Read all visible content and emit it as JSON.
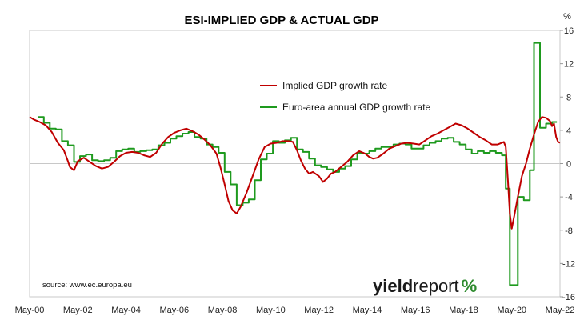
{
  "chart_data": {
    "type": "line",
    "title": "ESI-IMPLIED GDP & ACTUAL GDP",
    "y_unit_label": "%",
    "ylim": [
      -16,
      16
    ],
    "yticks": [
      -16,
      -12,
      -8,
      -4,
      0,
      4,
      8,
      12,
      16
    ],
    "y_axis_position": "right",
    "xlim": [
      2000.33,
      2022.33
    ],
    "x_tick_labels": [
      "May-00",
      "May-02",
      "May-04",
      "May-06",
      "May-08",
      "May-10",
      "May-12",
      "May-14",
      "May-16",
      "May-18",
      "May-20",
      "May-22"
    ],
    "x_tick_values": [
      2000.33,
      2002.33,
      2004.33,
      2006.33,
      2008.33,
      2010.33,
      2012.33,
      2014.33,
      2016.33,
      2018.33,
      2020.33,
      2022.33
    ],
    "grid": false,
    "legend_position": "top-center",
    "series": [
      {
        "name": "Implied GDP growth rate",
        "color": "#c00000",
        "points": [
          [
            2000.33,
            5.6
          ],
          [
            2000.5,
            5.3
          ],
          [
            2000.75,
            5.0
          ],
          [
            2001.0,
            4.6
          ],
          [
            2001.25,
            3.8
          ],
          [
            2001.5,
            2.5
          ],
          [
            2001.75,
            1.6
          ],
          [
            2001.92,
            0.3
          ],
          [
            2002.0,
            -0.4
          ],
          [
            2002.17,
            -0.8
          ],
          [
            2002.33,
            0.3
          ],
          [
            2002.58,
            0.7
          ],
          [
            2002.83,
            0.2
          ],
          [
            2003.08,
            -0.3
          ],
          [
            2003.33,
            -0.6
          ],
          [
            2003.58,
            -0.4
          ],
          [
            2003.83,
            0.2
          ],
          [
            2004.08,
            0.9
          ],
          [
            2004.33,
            1.3
          ],
          [
            2004.58,
            1.4
          ],
          [
            2004.83,
            1.3
          ],
          [
            2005.08,
            1.0
          ],
          [
            2005.33,
            0.8
          ],
          [
            2005.58,
            1.3
          ],
          [
            2005.83,
            2.4
          ],
          [
            2006.08,
            3.2
          ],
          [
            2006.33,
            3.7
          ],
          [
            2006.58,
            4.0
          ],
          [
            2006.83,
            4.2
          ],
          [
            2007.08,
            3.9
          ],
          [
            2007.33,
            3.5
          ],
          [
            2007.58,
            2.9
          ],
          [
            2007.83,
            2.2
          ],
          [
            2008.08,
            1.2
          ],
          [
            2008.25,
            -0.5
          ],
          [
            2008.42,
            -2.5
          ],
          [
            2008.58,
            -4.5
          ],
          [
            2008.75,
            -5.6
          ],
          [
            2008.92,
            -6.0
          ],
          [
            2009.08,
            -5.2
          ],
          [
            2009.33,
            -3.5
          ],
          [
            2009.58,
            -1.5
          ],
          [
            2009.83,
            0.5
          ],
          [
            2010.08,
            2.0
          ],
          [
            2010.33,
            2.4
          ],
          [
            2010.58,
            2.5
          ],
          [
            2010.83,
            2.7
          ],
          [
            2011.08,
            2.7
          ],
          [
            2011.25,
            2.6
          ],
          [
            2011.42,
            1.6
          ],
          [
            2011.58,
            0.4
          ],
          [
            2011.75,
            -0.6
          ],
          [
            2011.92,
            -1.2
          ],
          [
            2012.08,
            -1.0
          ],
          [
            2012.33,
            -1.5
          ],
          [
            2012.5,
            -2.2
          ],
          [
            2012.67,
            -1.8
          ],
          [
            2012.83,
            -1.2
          ],
          [
            2013.0,
            -1.0
          ],
          [
            2013.25,
            -0.4
          ],
          [
            2013.5,
            0.2
          ],
          [
            2013.75,
            1.0
          ],
          [
            2014.0,
            1.5
          ],
          [
            2014.25,
            1.2
          ],
          [
            2014.42,
            0.8
          ],
          [
            2014.58,
            0.6
          ],
          [
            2014.75,
            0.7
          ],
          [
            2015.0,
            1.2
          ],
          [
            2015.25,
            1.8
          ],
          [
            2015.5,
            2.1
          ],
          [
            2015.75,
            2.4
          ],
          [
            2016.0,
            2.5
          ],
          [
            2016.25,
            2.4
          ],
          [
            2016.5,
            2.3
          ],
          [
            2016.75,
            2.8
          ],
          [
            2017.0,
            3.3
          ],
          [
            2017.25,
            3.6
          ],
          [
            2017.5,
            4.0
          ],
          [
            2017.75,
            4.4
          ],
          [
            2018.0,
            4.8
          ],
          [
            2018.25,
            4.6
          ],
          [
            2018.5,
            4.2
          ],
          [
            2018.75,
            3.7
          ],
          [
            2019.0,
            3.2
          ],
          [
            2019.25,
            2.8
          ],
          [
            2019.5,
            2.3
          ],
          [
            2019.75,
            2.3
          ],
          [
            2020.0,
            2.6
          ],
          [
            2020.08,
            2.0
          ],
          [
            2020.17,
            -2.0
          ],
          [
            2020.25,
            -6.0
          ],
          [
            2020.33,
            -7.8
          ],
          [
            2020.42,
            -6.5
          ],
          [
            2020.58,
            -4.0
          ],
          [
            2020.75,
            -1.5
          ],
          [
            2020.92,
            0.0
          ],
          [
            2021.08,
            1.8
          ],
          [
            2021.25,
            3.5
          ],
          [
            2021.42,
            5.0
          ],
          [
            2021.58,
            5.6
          ],
          [
            2021.75,
            5.5
          ],
          [
            2021.92,
            5.1
          ],
          [
            2022.0,
            4.5
          ],
          [
            2022.08,
            4.8
          ],
          [
            2022.17,
            3.2
          ],
          [
            2022.25,
            2.6
          ],
          [
            2022.33,
            2.5
          ]
        ]
      },
      {
        "name": "Euro-area annual GDP growth rate",
        "color": "#1e9a1e",
        "points": [
          [
            2000.67,
            5.6
          ],
          [
            2000.92,
            5.6
          ],
          [
            2000.92,
            4.9
          ],
          [
            2001.17,
            4.9
          ],
          [
            2001.17,
            4.2
          ],
          [
            2001.42,
            4.2
          ],
          [
            2001.42,
            4.1
          ],
          [
            2001.67,
            4.1
          ],
          [
            2001.67,
            2.7
          ],
          [
            2001.92,
            2.7
          ],
          [
            2001.92,
            2.2
          ],
          [
            2002.17,
            2.2
          ],
          [
            2002.17,
            0.2
          ],
          [
            2002.42,
            0.2
          ],
          [
            2002.42,
            0.9
          ],
          [
            2002.67,
            0.9
          ],
          [
            2002.67,
            1.1
          ],
          [
            2002.92,
            1.1
          ],
          [
            2002.92,
            0.4
          ],
          [
            2003.17,
            0.4
          ],
          [
            2003.17,
            0.3
          ],
          [
            2003.42,
            0.3
          ],
          [
            2003.42,
            0.4
          ],
          [
            2003.67,
            0.4
          ],
          [
            2003.67,
            0.7
          ],
          [
            2003.92,
            0.7
          ],
          [
            2003.92,
            1.5
          ],
          [
            2004.17,
            1.5
          ],
          [
            2004.17,
            1.7
          ],
          [
            2004.42,
            1.7
          ],
          [
            2004.42,
            1.8
          ],
          [
            2004.67,
            1.8
          ],
          [
            2004.67,
            1.4
          ],
          [
            2004.92,
            1.4
          ],
          [
            2004.92,
            1.5
          ],
          [
            2005.17,
            1.5
          ],
          [
            2005.17,
            1.6
          ],
          [
            2005.42,
            1.6
          ],
          [
            2005.42,
            1.7
          ],
          [
            2005.67,
            1.7
          ],
          [
            2005.67,
            2.2
          ],
          [
            2005.92,
            2.2
          ],
          [
            2005.92,
            2.5
          ],
          [
            2006.17,
            2.5
          ],
          [
            2006.17,
            3.0
          ],
          [
            2006.42,
            3.0
          ],
          [
            2006.42,
            3.3
          ],
          [
            2006.67,
            3.3
          ],
          [
            2006.67,
            3.6
          ],
          [
            2006.92,
            3.6
          ],
          [
            2006.92,
            3.8
          ],
          [
            2007.17,
            3.8
          ],
          [
            2007.17,
            3.2
          ],
          [
            2007.42,
            3.2
          ],
          [
            2007.42,
            3.0
          ],
          [
            2007.67,
            3.0
          ],
          [
            2007.67,
            2.3
          ],
          [
            2007.92,
            2.3
          ],
          [
            2007.92,
            2.0
          ],
          [
            2008.17,
            2.0
          ],
          [
            2008.17,
            1.3
          ],
          [
            2008.42,
            1.3
          ],
          [
            2008.42,
            -1.0
          ],
          [
            2008.67,
            -1.0
          ],
          [
            2008.67,
            -2.5
          ],
          [
            2008.92,
            -2.5
          ],
          [
            2008.92,
            -5.0
          ],
          [
            2009.17,
            -5.0
          ],
          [
            2009.17,
            -4.7
          ],
          [
            2009.42,
            -4.7
          ],
          [
            2009.42,
            -4.3
          ],
          [
            2009.67,
            -4.3
          ],
          [
            2009.67,
            -2.0
          ],
          [
            2009.92,
            -2.0
          ],
          [
            2009.92,
            0.5
          ],
          [
            2010.17,
            0.5
          ],
          [
            2010.17,
            1.2
          ],
          [
            2010.42,
            1.2
          ],
          [
            2010.42,
            2.7
          ],
          [
            2010.67,
            2.7
          ],
          [
            2010.67,
            2.5
          ],
          [
            2010.92,
            2.5
          ],
          [
            2010.92,
            2.8
          ],
          [
            2011.17,
            2.8
          ],
          [
            2011.17,
            3.1
          ],
          [
            2011.42,
            3.1
          ],
          [
            2011.42,
            1.7
          ],
          [
            2011.67,
            1.7
          ],
          [
            2011.67,
            1.4
          ],
          [
            2011.92,
            1.4
          ],
          [
            2011.92,
            0.6
          ],
          [
            2012.17,
            0.6
          ],
          [
            2012.17,
            -0.2
          ],
          [
            2012.42,
            -0.2
          ],
          [
            2012.42,
            -0.4
          ],
          [
            2012.67,
            -0.4
          ],
          [
            2012.67,
            -0.7
          ],
          [
            2012.92,
            -0.7
          ],
          [
            2012.92,
            -1.0
          ],
          [
            2013.17,
            -1.0
          ],
          [
            2013.17,
            -0.6
          ],
          [
            2013.42,
            -0.6
          ],
          [
            2013.42,
            -0.3
          ],
          [
            2013.67,
            -0.3
          ],
          [
            2013.67,
            0.5
          ],
          [
            2013.92,
            0.5
          ],
          [
            2013.92,
            1.3
          ],
          [
            2014.17,
            1.3
          ],
          [
            2014.17,
            1.2
          ],
          [
            2014.42,
            1.2
          ],
          [
            2014.42,
            1.5
          ],
          [
            2014.67,
            1.5
          ],
          [
            2014.67,
            1.8
          ],
          [
            2014.92,
            1.8
          ],
          [
            2014.92,
            2.0
          ],
          [
            2015.17,
            2.0
          ],
          [
            2015.17,
            2.0
          ],
          [
            2015.42,
            2.0
          ],
          [
            2015.42,
            2.3
          ],
          [
            2015.67,
            2.3
          ],
          [
            2015.67,
            2.4
          ],
          [
            2015.92,
            2.4
          ],
          [
            2015.92,
            2.3
          ],
          [
            2016.17,
            2.3
          ],
          [
            2016.17,
            1.8
          ],
          [
            2016.42,
            1.8
          ],
          [
            2016.42,
            1.8
          ],
          [
            2016.67,
            1.8
          ],
          [
            2016.67,
            2.2
          ],
          [
            2016.92,
            2.2
          ],
          [
            2016.92,
            2.5
          ],
          [
            2017.17,
            2.5
          ],
          [
            2017.17,
            2.7
          ],
          [
            2017.42,
            2.7
          ],
          [
            2017.42,
            3.0
          ],
          [
            2017.67,
            3.0
          ],
          [
            2017.67,
            3.1
          ],
          [
            2017.92,
            3.1
          ],
          [
            2017.92,
            2.6
          ],
          [
            2018.17,
            2.6
          ],
          [
            2018.17,
            2.3
          ],
          [
            2018.42,
            2.3
          ],
          [
            2018.42,
            1.7
          ],
          [
            2018.67,
            1.7
          ],
          [
            2018.67,
            1.2
          ],
          [
            2018.92,
            1.2
          ],
          [
            2018.92,
            1.5
          ],
          [
            2019.17,
            1.5
          ],
          [
            2019.17,
            1.3
          ],
          [
            2019.42,
            1.3
          ],
          [
            2019.42,
            1.5
          ],
          [
            2019.67,
            1.5
          ],
          [
            2019.67,
            1.3
          ],
          [
            2019.92,
            1.3
          ],
          [
            2019.92,
            1.0
          ],
          [
            2020.08,
            1.0
          ],
          [
            2020.08,
            -3.0
          ],
          [
            2020.25,
            -3.0
          ],
          [
            2020.25,
            -14.6
          ],
          [
            2020.58,
            -14.6
          ],
          [
            2020.58,
            -4.0
          ],
          [
            2020.83,
            -4.0
          ],
          [
            2020.83,
            -4.4
          ],
          [
            2021.08,
            -4.4
          ],
          [
            2021.08,
            -0.8
          ],
          [
            2021.25,
            -0.8
          ],
          [
            2021.25,
            14.5
          ],
          [
            2021.5,
            14.5
          ],
          [
            2021.5,
            4.3
          ],
          [
            2021.75,
            4.3
          ],
          [
            2021.75,
            4.8
          ],
          [
            2022.0,
            4.8
          ],
          [
            2022.0,
            5.0
          ],
          [
            2022.2,
            5.0
          ]
        ]
      }
    ],
    "annotations": [
      "source: www.ec.europa.eu"
    ]
  },
  "logo": {
    "part1": "yield",
    "part2": "report",
    "part3": "%",
    "accent_color": "#2e8b2e"
  }
}
